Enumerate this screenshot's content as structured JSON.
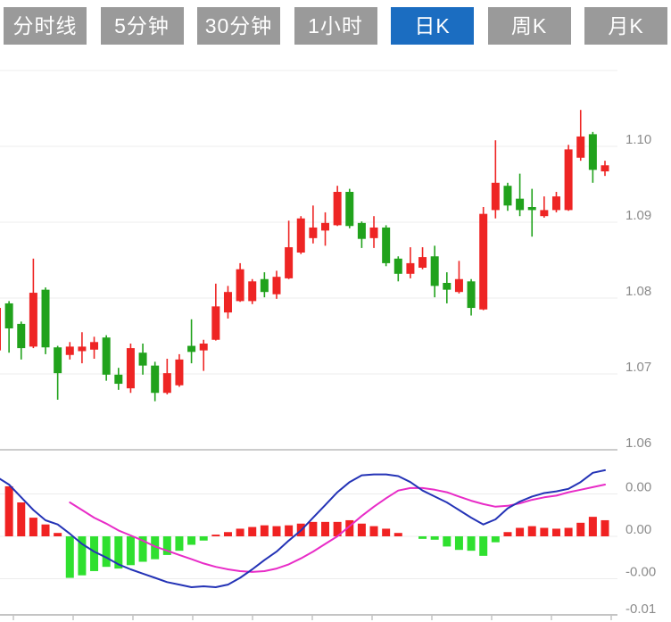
{
  "toolbar": {
    "tabs": [
      {
        "label": "分时线",
        "active": false
      },
      {
        "label": "5分钟",
        "active": false
      },
      {
        "label": "30分钟",
        "active": false
      },
      {
        "label": "1小时",
        "active": false
      },
      {
        "label": "日K",
        "active": true
      },
      {
        "label": "周K",
        "active": false
      },
      {
        "label": "月K",
        "active": false
      }
    ],
    "colors": {
      "inactive_bg": "#9a9a9a",
      "active_bg": "#1b6dc1",
      "text": "#ffffff"
    }
  },
  "chart_data": {
    "type": "candlestick+macd",
    "price_axis": {
      "ticks": [
        "1.10",
        "1.09",
        "1.08",
        "1.07",
        "1.06"
      ],
      "tick_values": [
        1.1,
        1.09,
        1.08,
        1.07,
        1.06
      ],
      "grid_values": [
        1.11,
        1.1,
        1.09,
        1.08,
        1.07
      ],
      "panel_divider_value": 1.06,
      "visible_range": [
        1.0595,
        1.1125
      ]
    },
    "macd_axis": {
      "ticks": [
        "0.00",
        "0.00",
        "-0.00",
        "-0.01"
      ],
      "tick_values": [
        0.005,
        0.0,
        -0.005,
        -0.01
      ],
      "grid_values": [
        0.005,
        0.0,
        -0.005
      ],
      "visible_range": [
        -0.0105,
        0.0085
      ]
    },
    "candles": [
      {
        "o": 1.0731,
        "h": 1.079,
        "l": 1.0728,
        "c": 1.0787
      },
      {
        "o": 1.0793,
        "h": 1.0796,
        "l": 1.0728,
        "c": 1.076
      },
      {
        "o": 1.0766,
        "h": 1.0769,
        "l": 1.0719,
        "c": 1.0734
      },
      {
        "o": 1.0736,
        "h": 1.0852,
        "l": 1.0734,
        "c": 1.0807
      },
      {
        "o": 1.0811,
        "h": 1.0814,
        "l": 1.0726,
        "c": 1.0735
      },
      {
        "o": 1.0735,
        "h": 1.0737,
        "l": 1.0666,
        "c": 1.0701
      },
      {
        "o": 1.0725,
        "h": 1.0742,
        "l": 1.0719,
        "c": 1.0736
      },
      {
        "o": 1.073,
        "h": 1.0755,
        "l": 1.0714,
        "c": 1.0736
      },
      {
        "o": 1.0732,
        "h": 1.0749,
        "l": 1.072,
        "c": 1.0742
      },
      {
        "o": 1.0748,
        "h": 1.0751,
        "l": 1.0691,
        "c": 1.0699
      },
      {
        "o": 1.0699,
        "h": 1.0708,
        "l": 1.0679,
        "c": 1.0687
      },
      {
        "o": 1.0681,
        "h": 1.074,
        "l": 1.0675,
        "c": 1.0734
      },
      {
        "o": 1.0728,
        "h": 1.074,
        "l": 1.0699,
        "c": 1.0711
      },
      {
        "o": 1.0711,
        "h": 1.0716,
        "l": 1.0664,
        "c": 1.0675
      },
      {
        "o": 1.0675,
        "h": 1.072,
        "l": 1.0673,
        "c": 1.0701
      },
      {
        "o": 1.0685,
        "h": 1.0726,
        "l": 1.0683,
        "c": 1.0719
      },
      {
        "o": 1.0737,
        "h": 1.0772,
        "l": 1.0714,
        "c": 1.0729
      },
      {
        "o": 1.0731,
        "h": 1.0745,
        "l": 1.0704,
        "c": 1.074
      },
      {
        "o": 1.0745,
        "h": 1.0819,
        "l": 1.0744,
        "c": 1.0789
      },
      {
        "o": 1.0781,
        "h": 1.0816,
        "l": 1.0773,
        "c": 1.0808
      },
      {
        "o": 1.0796,
        "h": 1.0846,
        "l": 1.0795,
        "c": 1.0838
      },
      {
        "o": 1.0796,
        "h": 1.0825,
        "l": 1.0792,
        "c": 1.0822
      },
      {
        "o": 1.0825,
        "h": 1.0834,
        "l": 1.0801,
        "c": 1.0808
      },
      {
        "o": 1.0805,
        "h": 1.0836,
        "l": 1.0799,
        "c": 1.0828
      },
      {
        "o": 1.0826,
        "h": 1.0902,
        "l": 1.0825,
        "c": 1.0867
      },
      {
        "o": 1.086,
        "h": 1.0908,
        "l": 1.0858,
        "c": 1.0905
      },
      {
        "o": 1.0879,
        "h": 1.0922,
        "l": 1.0872,
        "c": 1.0893
      },
      {
        "o": 1.0889,
        "h": 1.0913,
        "l": 1.0869,
        "c": 1.0899
      },
      {
        "o": 1.0896,
        "h": 1.0948,
        "l": 1.0895,
        "c": 1.094
      },
      {
        "o": 1.094,
        "h": 1.0944,
        "l": 1.0892,
        "c": 1.0895
      },
      {
        "o": 1.0899,
        "h": 1.0901,
        "l": 1.0866,
        "c": 1.0878
      },
      {
        "o": 1.0879,
        "h": 1.0908,
        "l": 1.0866,
        "c": 1.0893
      },
      {
        "o": 1.0893,
        "h": 1.0896,
        "l": 1.0842,
        "c": 1.0846
      },
      {
        "o": 1.0852,
        "h": 1.0855,
        "l": 1.0822,
        "c": 1.0832
      },
      {
        "o": 1.0832,
        "h": 1.0867,
        "l": 1.0826,
        "c": 1.0846
      },
      {
        "o": 1.084,
        "h": 1.0867,
        "l": 1.0838,
        "c": 1.0854
      },
      {
        "o": 1.0855,
        "h": 1.0869,
        "l": 1.0801,
        "c": 1.0816
      },
      {
        "o": 1.082,
        "h": 1.0834,
        "l": 1.0793,
        "c": 1.0811
      },
      {
        "o": 1.0808,
        "h": 1.0849,
        "l": 1.0806,
        "c": 1.0825
      },
      {
        "o": 1.0822,
        "h": 1.0825,
        "l": 1.0777,
        "c": 1.0787
      },
      {
        "o": 1.0785,
        "h": 1.092,
        "l": 1.0784,
        "c": 1.0911
      },
      {
        "o": 1.0916,
        "h": 1.1008,
        "l": 1.0905,
        "c": 1.0952
      },
      {
        "o": 1.0948,
        "h": 1.0952,
        "l": 1.0915,
        "c": 1.0922
      },
      {
        "o": 1.0931,
        "h": 1.0964,
        "l": 1.0908,
        "c": 1.0916
      },
      {
        "o": 1.092,
        "h": 1.0944,
        "l": 1.0881,
        "c": 1.0916
      },
      {
        "o": 1.0908,
        "h": 1.0934,
        "l": 1.0906,
        "c": 1.0916
      },
      {
        "o": 1.0916,
        "h": 1.094,
        "l": 1.0913,
        "c": 1.0934
      },
      {
        "o": 1.0916,
        "h": 1.1002,
        "l": 1.0915,
        "c": 1.0996
      },
      {
        "o": 1.0985,
        "h": 1.1048,
        "l": 1.0981,
        "c": 1.1013
      },
      {
        "o": 1.1016,
        "h": 1.1019,
        "l": 1.0952,
        "c": 1.0969
      },
      {
        "o": 1.0967,
        "h": 1.0981,
        "l": 1.0961,
        "c": 1.0975
      }
    ],
    "macd": {
      "histogram": [
        null,
        0.0059,
        0.004,
        0.0022,
        0.0014,
        0.0004,
        -0.0049,
        -0.0046,
        -0.0041,
        -0.0036,
        -0.0038,
        -0.0034,
        -0.003,
        -0.0027,
        -0.0022,
        -0.0017,
        -0.001,
        -0.0005,
        0.0002,
        0.0005,
        0.0009,
        0.0011,
        0.0013,
        0.0012,
        0.0013,
        0.0015,
        0.0017,
        0.0017,
        0.0017,
        0.0019,
        0.0015,
        0.0012,
        0.0009,
        0.0004,
        null,
        -0.0003,
        -0.0004,
        -0.0012,
        -0.0016,
        -0.0017,
        -0.0023,
        -0.0007,
        0.0005,
        0.001,
        0.0012,
        0.001,
        0.0009,
        0.001,
        0.0016,
        0.0023,
        0.0019
      ],
      "dif": [
        0.007,
        0.0061,
        0.0046,
        0.0031,
        0.0019,
        0.0014,
        0.0003,
        -0.0009,
        -0.0018,
        -0.0025,
        -0.0033,
        -0.0039,
        -0.0044,
        -0.0049,
        -0.0054,
        -0.0057,
        -0.006,
        -0.0059,
        -0.006,
        -0.0057,
        -0.0049,
        -0.0039,
        -0.0028,
        -0.0018,
        -0.0005,
        0.0007,
        0.0022,
        0.0037,
        0.0052,
        0.0064,
        0.0072,
        0.0073,
        0.0073,
        0.0071,
        0.0064,
        0.0054,
        0.0047,
        0.004,
        0.0031,
        0.0022,
        0.0014,
        0.002,
        0.0033,
        0.0041,
        0.0047,
        0.0051,
        0.0053,
        0.0056,
        0.0064,
        0.0075,
        0.0078
      ],
      "dea": [
        null,
        null,
        null,
        null,
        null,
        null,
        0.004,
        0.0031,
        0.0022,
        0.0015,
        0.0007,
        0.0001,
        -0.0005,
        -0.0012,
        -0.0017,
        -0.0022,
        -0.0027,
        -0.0032,
        -0.0036,
        -0.0039,
        -0.0041,
        -0.0042,
        -0.0041,
        -0.0038,
        -0.0033,
        -0.0026,
        -0.0018,
        -0.0009,
        0.0,
        0.0012,
        0.0024,
        0.0035,
        0.0045,
        0.0054,
        0.0057,
        0.0057,
        0.0055,
        0.0052,
        0.0047,
        0.0042,
        0.0038,
        0.0035,
        0.0036,
        0.0039,
        0.0043,
        0.0046,
        0.0048,
        0.0052,
        0.0055,
        0.0058,
        0.0061
      ]
    },
    "colors": {
      "up": "#ee2524",
      "down": "#21a21c",
      "hist_up": "#f02222",
      "hist_down": "#2fe02f",
      "dif_line": "#2433b6",
      "dea_line": "#e82cc7",
      "grid": "#ececec",
      "divider": "#cccccc",
      "axis": "#c4c4c4",
      "label": "#8c8c8c"
    },
    "legend_position": "none",
    "grid": true
  }
}
